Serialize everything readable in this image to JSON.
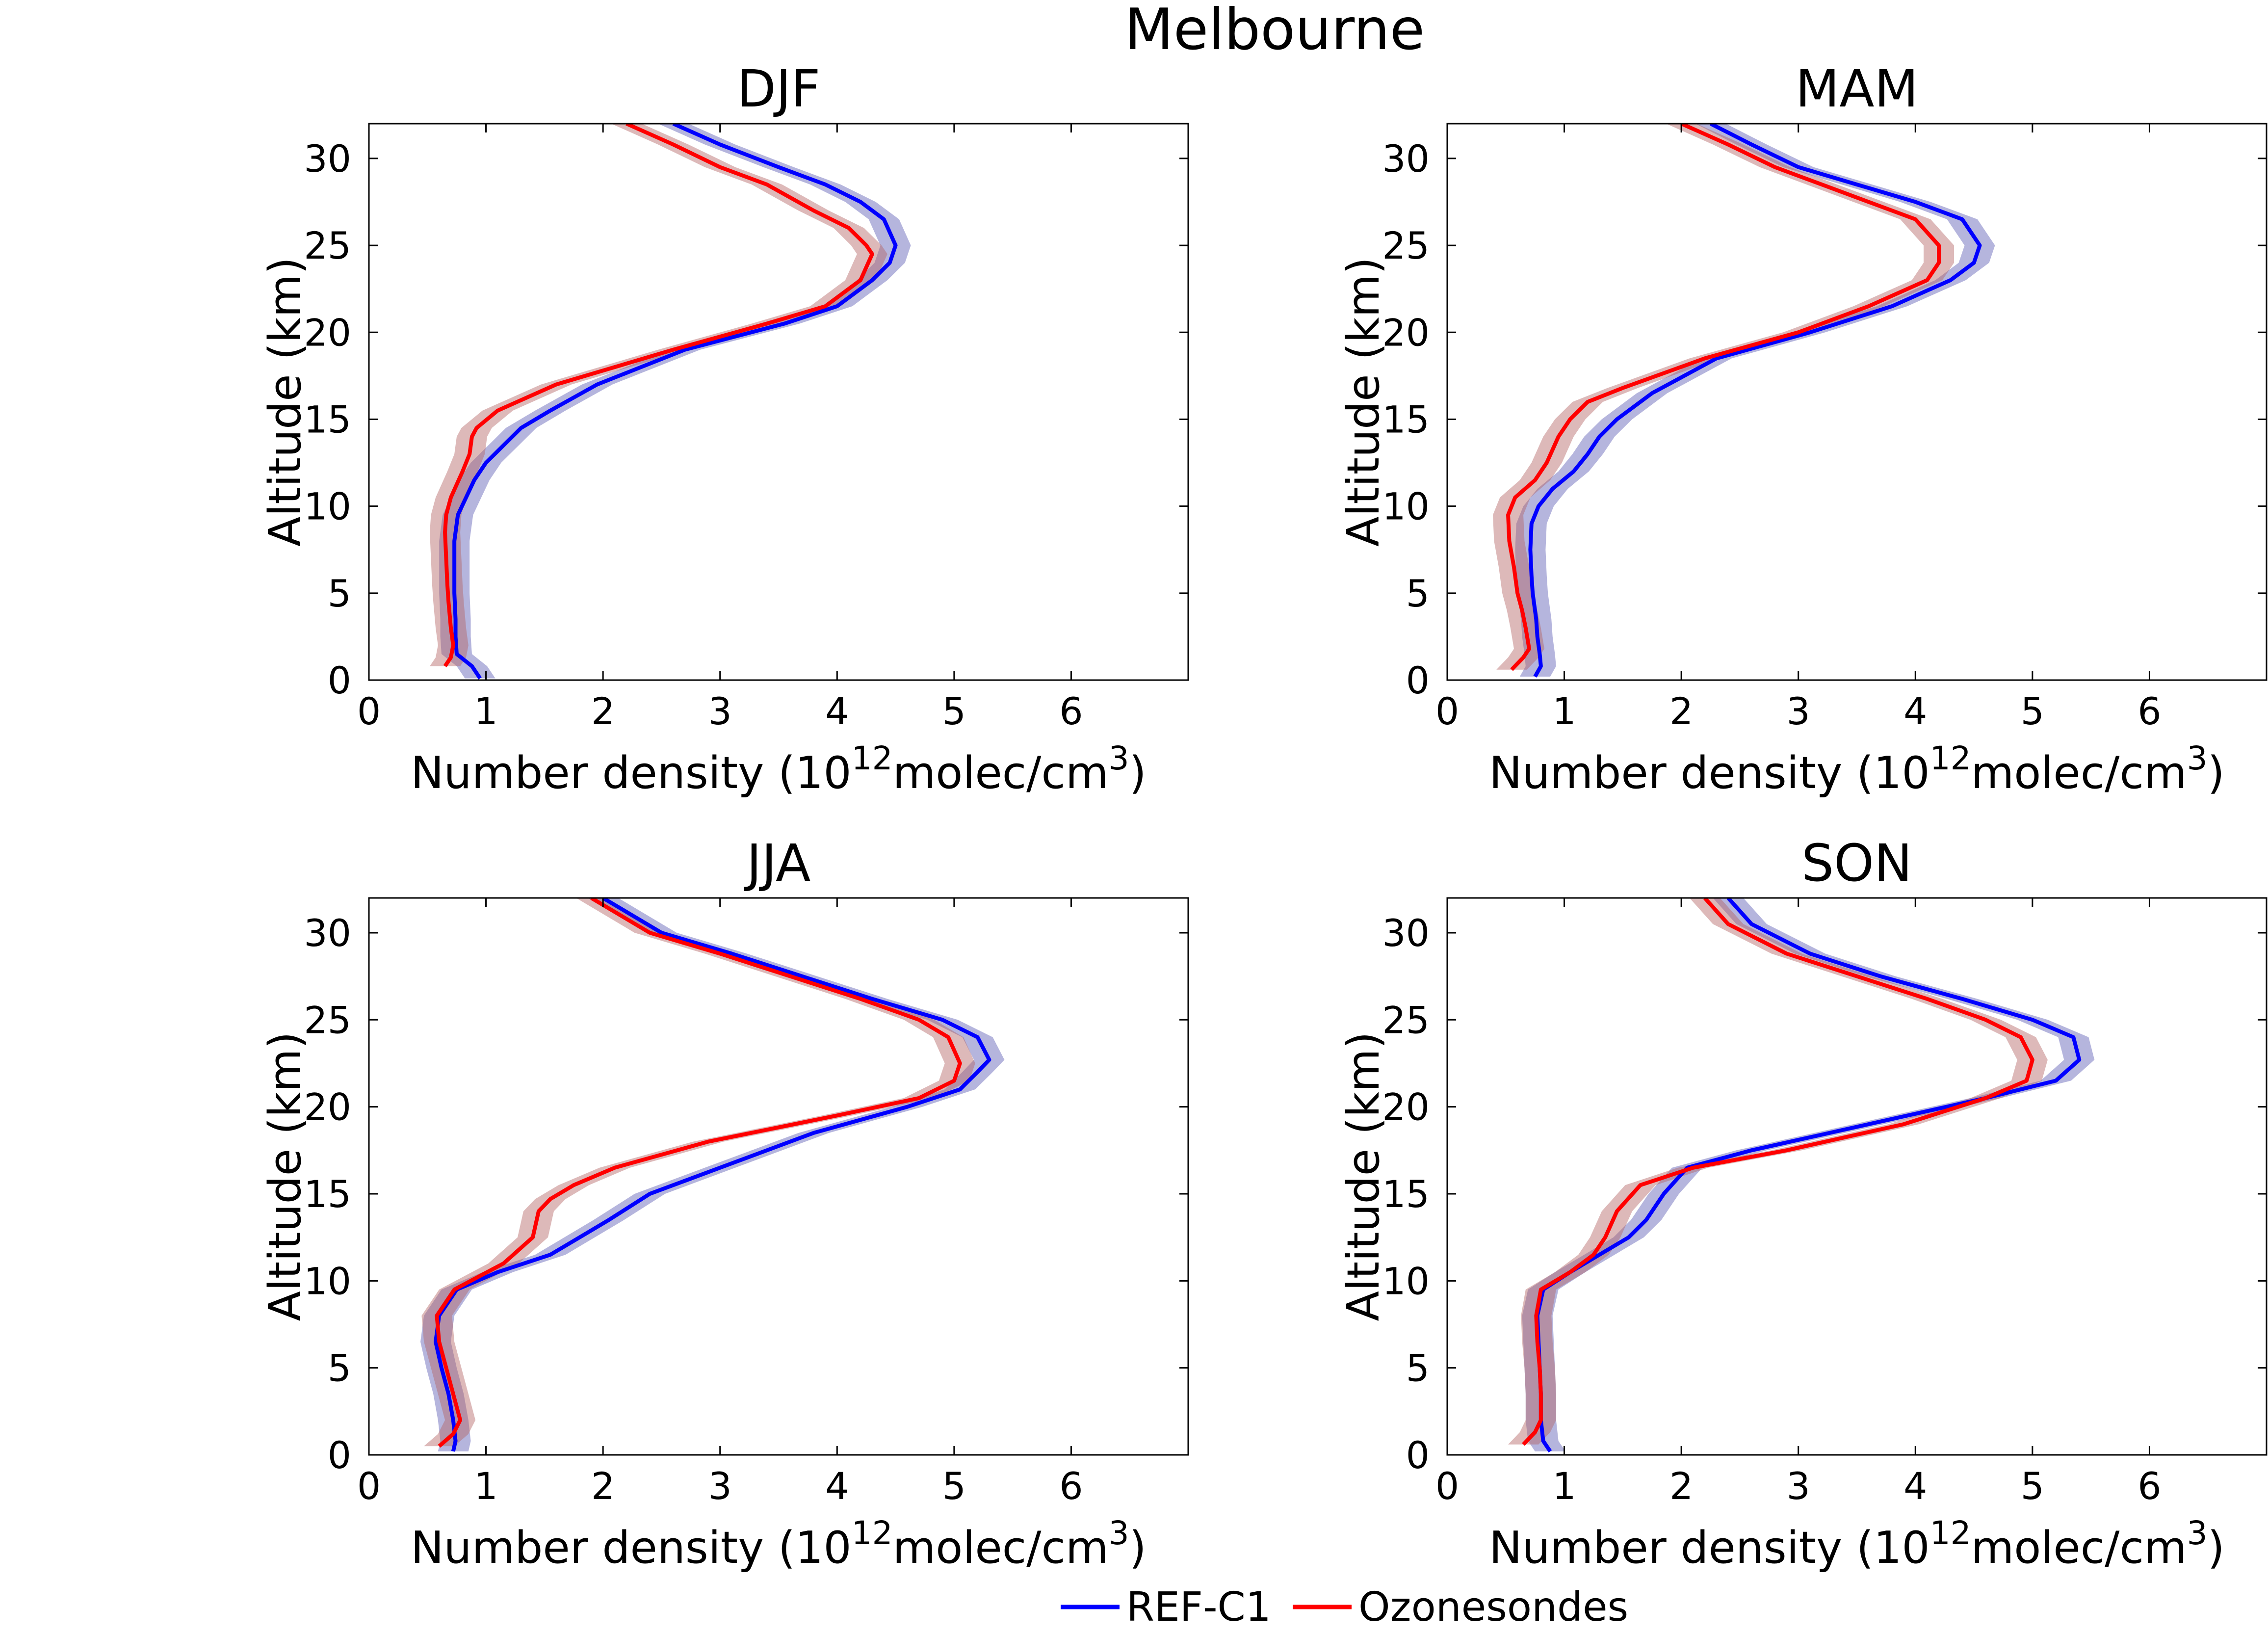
{
  "figure": {
    "title": "Melbourne",
    "legend": [
      {
        "label": "REF-C1",
        "color": "#0000ff"
      },
      {
        "label": "Ozonesondes",
        "color": "#ff0000"
      }
    ]
  },
  "chart_data": [
    {
      "type": "line",
      "title": "DJF",
      "xlabel": "Number density (10^12molec/cm^3)",
      "xlabel_parts": {
        "prefix": "Number density (10",
        "exp1": "12",
        "middle": "molec/cm",
        "exp2": "3",
        "suffix": ")"
      },
      "ylabel": "Altitude (km)",
      "xlim": [
        0,
        7
      ],
      "ylim": [
        0,
        32
      ],
      "xticks": [
        0,
        1,
        2,
        3,
        4,
        5,
        6
      ],
      "yticks": [
        0,
        5,
        10,
        15,
        20,
        25,
        30
      ],
      "grid": false,
      "series": [
        {
          "name": "REF-C1",
          "color": "#0000ff",
          "band_color": "#5a5ab4",
          "x": [
            0.95,
            0.88,
            0.75,
            0.74,
            0.74,
            0.73,
            0.73,
            0.73,
            0.76,
            0.83,
            0.9,
            1.0,
            1.15,
            1.3,
            1.55,
            1.95,
            2.7,
            3.55,
            4.0,
            4.3,
            4.45,
            4.5,
            4.4,
            4.2,
            3.9,
            3.5,
            3.0,
            2.6
          ],
          "y": [
            0.1,
            0.8,
            1.5,
            2.5,
            3.5,
            5,
            6.5,
            8,
            9.5,
            10.5,
            11.5,
            12.5,
            13.5,
            14.5,
            15.5,
            17,
            19,
            20.5,
            21.5,
            23,
            24,
            25,
            26.5,
            27.5,
            28.5,
            29.5,
            30.8,
            32
          ]
        },
        {
          "name": "Ozonesondes",
          "color": "#ff0000",
          "band_color": "#b46464",
          "x": [
            0.65,
            0.7,
            0.72,
            0.7,
            0.68,
            0.67,
            0.66,
            0.65,
            0.66,
            0.7,
            0.8,
            0.86,
            0.88,
            0.92,
            1.1,
            1.6,
            2.6,
            3.4,
            3.9,
            4.2,
            4.3,
            4.25,
            4.1,
            3.8,
            3.4,
            3.0,
            2.6,
            2.2
          ],
          "y": [
            0.8,
            1.3,
            2.0,
            3.0,
            4.5,
            5.5,
            7,
            8.5,
            9.5,
            10.5,
            12,
            13,
            14,
            14.5,
            15.5,
            17,
            19,
            20.5,
            21.5,
            23,
            24.5,
            25,
            26,
            27,
            28.5,
            29.5,
            30.8,
            32
          ]
        }
      ]
    },
    {
      "type": "line",
      "title": "MAM",
      "xlabel": "Number density (10^12molec/cm^3)",
      "xlabel_parts": {
        "prefix": "Number density (10",
        "exp1": "12",
        "middle": "molec/cm",
        "exp2": "3",
        "suffix": ")"
      },
      "ylabel": "Altitude (km)",
      "xlim": [
        0,
        7
      ],
      "ylim": [
        0,
        32
      ],
      "xticks": [
        0,
        1,
        2,
        3,
        4,
        5,
        6
      ],
      "yticks": [
        0,
        5,
        10,
        15,
        20,
        25,
        30
      ],
      "grid": false,
      "series": [
        {
          "name": "REF-C1",
          "color": "#0000ff",
          "band_color": "#5a5ab4",
          "x": [
            0.75,
            0.8,
            0.79,
            0.77,
            0.76,
            0.73,
            0.72,
            0.71,
            0.72,
            0.78,
            0.9,
            1.08,
            1.2,
            1.3,
            1.45,
            1.75,
            2.3,
            3.1,
            3.8,
            4.3,
            4.5,
            4.55,
            4.4,
            4.0,
            3.5,
            3.0,
            2.6,
            2.25
          ],
          "y": [
            0.2,
            0.8,
            1.5,
            2.5,
            3.5,
            5,
            6,
            7.5,
            9,
            10,
            11,
            12,
            13,
            14,
            15,
            16.5,
            18.5,
            20,
            21.5,
            23,
            24,
            25,
            26.5,
            27.5,
            28.5,
            29.5,
            30.8,
            32
          ]
        },
        {
          "name": "Ozonesondes",
          "color": "#ff0000",
          "band_color": "#b46464",
          "x": [
            0.55,
            0.65,
            0.7,
            0.67,
            0.64,
            0.6,
            0.57,
            0.53,
            0.52,
            0.58,
            0.75,
            0.85,
            0.95,
            1.05,
            1.2,
            1.5,
            2.2,
            3.0,
            3.6,
            4.1,
            4.2,
            4.2,
            4.0,
            3.6,
            3.2,
            2.8,
            2.4,
            2.0
          ],
          "y": [
            0.6,
            1.3,
            1.8,
            3,
            4,
            5,
            6.5,
            8,
            9.5,
            10.5,
            11.5,
            12.5,
            14,
            15,
            16,
            16.8,
            18.5,
            20,
            21.5,
            23,
            24,
            25,
            26.5,
            27.5,
            28.5,
            29.5,
            30.8,
            32
          ]
        }
      ]
    },
    {
      "type": "line",
      "title": "JJA",
      "xlabel": "Number density (10^12molec/cm^3)",
      "xlabel_parts": {
        "prefix": "Number density (10",
        "exp1": "12",
        "middle": "molec/cm",
        "exp2": "3",
        "suffix": ")"
      },
      "ylabel": "Altitude (km)",
      "xlim": [
        0,
        7
      ],
      "ylim": [
        0,
        32
      ],
      "xticks": [
        0,
        1,
        2,
        3,
        4,
        5,
        6
      ],
      "yticks": [
        0,
        5,
        10,
        15,
        20,
        25,
        30
      ],
      "grid": false,
      "series": [
        {
          "name": "REF-C1",
          "color": "#0000ff",
          "band_color": "#5a5ab4",
          "x": [
            0.72,
            0.74,
            0.72,
            0.68,
            0.62,
            0.57,
            0.6,
            0.75,
            1.1,
            1.55,
            1.8,
            2.05,
            2.4,
            3.0,
            3.8,
            4.6,
            5.05,
            5.2,
            5.3,
            5.2,
            4.9,
            4.3,
            3.7,
            3.1,
            2.5,
            2.0
          ],
          "y": [
            0.2,
            0.8,
            2,
            3.5,
            5,
            6.5,
            8,
            9.5,
            10.5,
            11.5,
            12.5,
            13.5,
            15,
            16.5,
            18.5,
            20,
            21,
            22,
            22.7,
            24,
            25,
            26.2,
            27.5,
            28.8,
            30,
            32
          ]
        },
        {
          "name": "Ozonesondes",
          "color": "#ff0000",
          "band_color": "#b46464",
          "x": [
            0.6,
            0.72,
            0.78,
            0.72,
            0.66,
            0.6,
            0.58,
            0.73,
            1.15,
            1.4,
            1.45,
            1.55,
            1.75,
            2.1,
            2.9,
            4.0,
            4.7,
            5.0,
            5.05,
            4.95,
            4.7,
            4.2,
            3.6,
            3.0,
            2.4,
            1.9
          ],
          "y": [
            0.5,
            1.2,
            2,
            3.5,
            5,
            6.5,
            8,
            9.5,
            11,
            12.5,
            14,
            14.7,
            15.5,
            16.5,
            18,
            19.5,
            20.5,
            21.5,
            22.5,
            24,
            25,
            26.2,
            27.5,
            28.8,
            30,
            32
          ]
        }
      ]
    },
    {
      "type": "line",
      "title": "SON",
      "xlabel": "Number density (10^12molec/cm^3)",
      "xlabel_parts": {
        "prefix": "Number density (10",
        "exp1": "12",
        "middle": "molec/cm",
        "exp2": "3",
        "suffix": ")"
      },
      "ylabel": "Altitude (km)",
      "xlim": [
        0,
        7
      ],
      "ylim": [
        0,
        32
      ],
      "xticks": [
        0,
        1,
        2,
        3,
        4,
        5,
        6
      ],
      "yticks": [
        0,
        5,
        10,
        15,
        20,
        25,
        30
      ],
      "grid": false,
      "series": [
        {
          "name": "REF-C1",
          "color": "#0000ff",
          "band_color": "#5a5ab4",
          "x": [
            0.88,
            0.82,
            0.8,
            0.8,
            0.79,
            0.78,
            0.77,
            0.82,
            1.05,
            1.3,
            1.55,
            1.7,
            1.85,
            2.05,
            2.6,
            3.6,
            4.6,
            5.2,
            5.4,
            5.35,
            5.0,
            4.4,
            3.7,
            3.1,
            2.6,
            2.4
          ],
          "y": [
            0.2,
            0.8,
            2,
            3.5,
            5,
            6.5,
            8,
            9.5,
            10.5,
            11.5,
            12.5,
            13.5,
            15,
            16.5,
            17.5,
            19,
            20.5,
            21.5,
            22.7,
            24,
            25,
            26.2,
            27.5,
            28.8,
            30.5,
            32
          ]
        },
        {
          "name": "Ozonesondes",
          "color": "#ff0000",
          "band_color": "#b46464",
          "x": [
            0.65,
            0.75,
            0.8,
            0.8,
            0.79,
            0.77,
            0.76,
            0.8,
            1.05,
            1.25,
            1.35,
            1.45,
            1.65,
            2.1,
            2.9,
            3.9,
            4.6,
            4.95,
            5.0,
            4.9,
            4.6,
            4.1,
            3.5,
            2.9,
            2.4,
            2.2
          ],
          "y": [
            0.6,
            1.3,
            2,
            3.5,
            5,
            6.5,
            8,
            9.5,
            10.5,
            11.5,
            12.5,
            14,
            15.5,
            16.5,
            17.5,
            19,
            20.5,
            21.5,
            22.7,
            24,
            25,
            26.2,
            27.5,
            28.8,
            30.5,
            32
          ]
        }
      ]
    }
  ]
}
